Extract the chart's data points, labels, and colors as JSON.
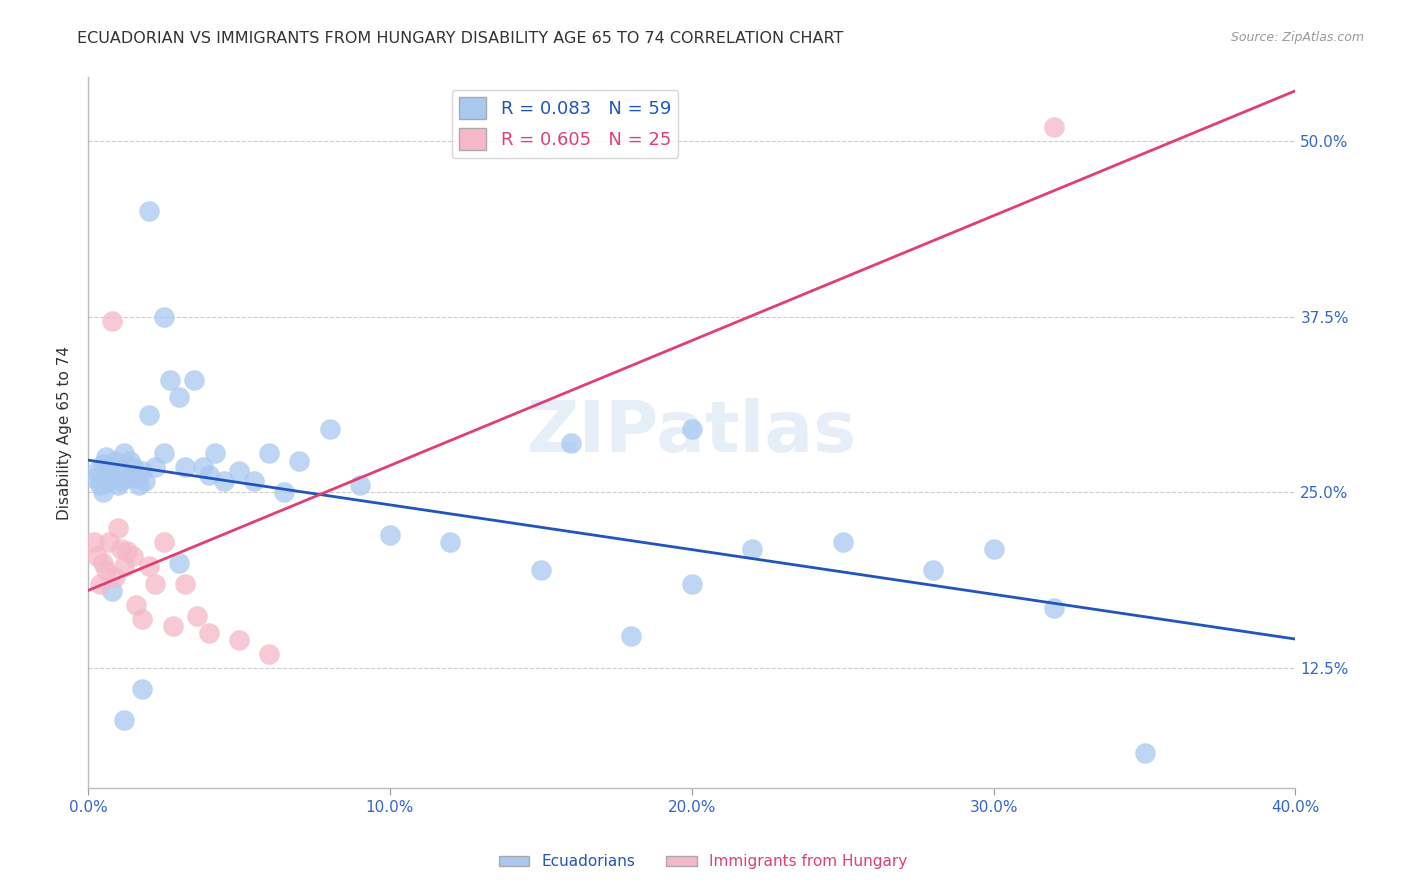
{
  "title": "ECUADORIAN VS IMMIGRANTS FROM HUNGARY DISABILITY AGE 65 TO 74 CORRELATION CHART",
  "source": "Source: ZipAtlas.com",
  "ylabel": "Disability Age 65 to 74",
  "watermark": "ZIPatlas",
  "legend1_label": "R = 0.083   N = 59",
  "legend2_label": "R = 0.605   N = 25",
  "legend1_color": "#a8c8f0",
  "legend2_color": "#f4b8c8",
  "line1_color": "#2255bb",
  "line2_color": "#e04070",
  "xmin": 0.0,
  "xmax": 0.4,
  "ymin": 0.04,
  "ymax": 0.545,
  "ytick_vals": [
    0.125,
    0.25,
    0.375,
    0.5
  ],
  "ytick_labels": [
    "12.5%",
    "25.0%",
    "37.5%",
    "50.0%"
  ],
  "xtick_vals": [
    0.0,
    0.1,
    0.2,
    0.3,
    0.4
  ],
  "xtick_labels": [
    "0.0%",
    "10.0%",
    "20.0%",
    "30.0%",
    "40.0%"
  ],
  "grid_color": "#cccccc",
  "background_color": "#ffffff",
  "ecu_x": [
    0.002,
    0.003,
    0.004,
    0.005,
    0.005,
    0.006,
    0.006,
    0.007,
    0.007,
    0.008,
    0.009,
    0.01,
    0.01,
    0.011,
    0.012,
    0.013,
    0.014,
    0.015,
    0.016,
    0.017,
    0.018,
    0.019,
    0.02,
    0.022,
    0.025,
    0.027,
    0.03,
    0.032,
    0.035,
    0.038,
    0.04,
    0.042,
    0.045,
    0.05,
    0.055,
    0.06,
    0.065,
    0.07,
    0.08,
    0.09,
    0.1,
    0.12,
    0.15,
    0.18,
    0.2,
    0.22,
    0.25,
    0.28,
    0.3,
    0.32,
    0.16,
    0.02,
    0.025,
    0.008,
    0.03,
    0.018,
    0.012,
    0.35,
    0.2
  ],
  "ecu_y": [
    0.26,
    0.265,
    0.255,
    0.27,
    0.25,
    0.262,
    0.275,
    0.258,
    0.268,
    0.26,
    0.272,
    0.265,
    0.255,
    0.258,
    0.278,
    0.26,
    0.272,
    0.268,
    0.26,
    0.255,
    0.265,
    0.258,
    0.305,
    0.268,
    0.278,
    0.33,
    0.318,
    0.268,
    0.33,
    0.268,
    0.262,
    0.278,
    0.258,
    0.265,
    0.258,
    0.278,
    0.25,
    0.272,
    0.295,
    0.255,
    0.22,
    0.215,
    0.195,
    0.148,
    0.185,
    0.21,
    0.215,
    0.195,
    0.21,
    0.168,
    0.285,
    0.45,
    0.375,
    0.18,
    0.2,
    0.11,
    0.088,
    0.065,
    0.295
  ],
  "hun_x": [
    0.002,
    0.003,
    0.004,
    0.005,
    0.006,
    0.007,
    0.008,
    0.009,
    0.01,
    0.011,
    0.012,
    0.013,
    0.015,
    0.016,
    0.018,
    0.02,
    0.022,
    0.025,
    0.028,
    0.032,
    0.036,
    0.04,
    0.05,
    0.06,
    0.32
  ],
  "hun_y": [
    0.215,
    0.205,
    0.185,
    0.2,
    0.195,
    0.215,
    0.372,
    0.19,
    0.225,
    0.21,
    0.198,
    0.208,
    0.205,
    0.17,
    0.16,
    0.198,
    0.185,
    0.215,
    0.155,
    0.185,
    0.162,
    0.15,
    0.145,
    0.135,
    0.51
  ]
}
